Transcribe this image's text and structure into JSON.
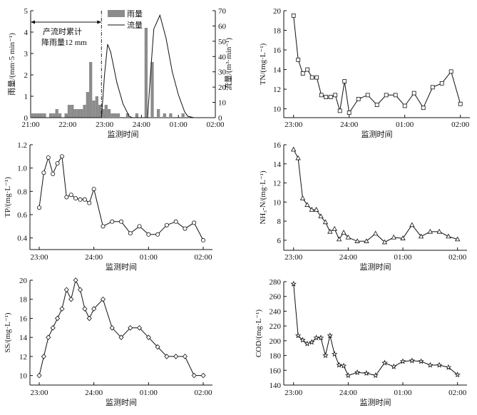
{
  "chart_data": [
    {
      "type": "bar+line",
      "xlabel": "监测时间",
      "xticks": [
        "21:00",
        "22:00",
        "23:00",
        "24:00",
        "01:00",
        "02:00"
      ],
      "xlim": [
        "21:00",
        "02:00"
      ],
      "ylabel": "雨量/(mm·5 min⁻¹)",
      "ylim": [
        0,
        5
      ],
      "yticks": [
        "0",
        "1",
        "2",
        "3",
        "4",
        "5"
      ],
      "y2label": "流量/(m³·min⁻¹)",
      "y2lim": [
        0,
        70
      ],
      "y2ticks": [
        "0",
        "10",
        "20",
        "30",
        "40",
        "50",
        "60",
        "70"
      ],
      "legend": {
        "placement": "top-center",
        "items": [
          "雨量",
          "流量"
        ]
      },
      "annotation": {
        "line1": "产流时累计",
        "line2": "降雨量12 mm",
        "marker_time": "22:55"
      },
      "bar_color": "#8c8c8c",
      "series": [
        {
          "name": "雨量",
          "kind": "bar",
          "axis": "left",
          "bin_minutes": 5,
          "x": [
            "21:00",
            "21:05",
            "21:10",
            "21:15",
            "21:20",
            "21:30",
            "21:35",
            "21:40",
            "21:45",
            "21:55",
            "22:00",
            "22:05",
            "22:10",
            "22:15",
            "22:20",
            "22:25",
            "22:30",
            "22:35",
            "22:40",
            "22:45",
            "22:50",
            "22:55",
            "23:00",
            "23:05",
            "23:10",
            "23:15",
            "23:20",
            "23:35",
            "23:50",
            "00:05",
            "00:15",
            "00:25",
            "00:35",
            "00:45",
            "01:05"
          ],
          "values": [
            0.2,
            0.2,
            0.2,
            0.2,
            0.2,
            0.2,
            0.2,
            0.4,
            0.2,
            0.2,
            0.6,
            0.6,
            0.4,
            0.4,
            0.4,
            0.6,
            1.2,
            2.6,
            0.8,
            1.0,
            0.6,
            0.4,
            0.6,
            0.4,
            0.2,
            0.2,
            0.2,
            0.2,
            0.2,
            4.2,
            2.6,
            0.4,
            0.2,
            0.2,
            0.2
          ]
        },
        {
          "name": "流量",
          "kind": "line",
          "axis": "right",
          "x": [
            "21:00",
            "22:55",
            "23:00",
            "23:05",
            "23:10",
            "23:20",
            "23:30",
            "23:40",
            "23:45",
            "00:10",
            "00:15",
            "00:20",
            "00:30",
            "00:40",
            "00:50",
            "01:00",
            "01:10",
            "01:15",
            "01:25",
            "02:00"
          ],
          "values": [
            0,
            0,
            28,
            48,
            43,
            23,
            9,
            1,
            0,
            0,
            30,
            58,
            67,
            52,
            30,
            15,
            4,
            1,
            0,
            0
          ]
        }
      ]
    },
    {
      "type": "line",
      "marker": "square",
      "xlabel": "监测时间",
      "ylabel": "TN/(mg·L⁻¹)",
      "xticks": [
        "23:00",
        "24:00",
        "01:00",
        "02:00"
      ],
      "xlim": [
        "23:00",
        "02:00"
      ],
      "ylim": [
        9.1,
        20
      ],
      "yticks": [
        "10",
        "12",
        "14",
        "16",
        "18",
        "20"
      ],
      "x": [
        "23:00",
        "23:05",
        "23:10",
        "23:15",
        "23:20",
        "23:25",
        "23:30",
        "23:35",
        "23:40",
        "23:45",
        "23:50",
        "23:55",
        "24:00",
        "00:10",
        "00:20",
        "00:30",
        "00:40",
        "00:50",
        "01:00",
        "01:10",
        "01:20",
        "01:30",
        "01:40",
        "01:50",
        "02:00"
      ],
      "values": [
        19.5,
        15.0,
        13.6,
        14.0,
        13.2,
        13.2,
        11.4,
        11.2,
        11.2,
        11.4,
        9.8,
        12.8,
        9.6,
        11.0,
        11.4,
        10.4,
        11.4,
        11.4,
        10.3,
        11.6,
        10.1,
        12.2,
        12.6,
        13.8,
        10.5
      ]
    },
    {
      "type": "line",
      "marker": "circle",
      "xlabel": "监测时间",
      "ylabel": "TP/(mg·L⁻¹)",
      "xticks": [
        "23:00",
        "24:00",
        "01:00",
        "02:00"
      ],
      "xlim": [
        "23:00",
        "02:00"
      ],
      "ylim": [
        0.3,
        1.2
      ],
      "yticks": [
        "0.4",
        "0.6",
        "0.8",
        "1.0",
        "1.2"
      ],
      "x": [
        "23:00",
        "23:05",
        "23:10",
        "23:15",
        "23:20",
        "23:25",
        "23:30",
        "23:35",
        "23:40",
        "23:45",
        "23:50",
        "23:55",
        "24:00",
        "00:10",
        "00:20",
        "00:30",
        "00:40",
        "00:50",
        "01:00",
        "01:10",
        "01:20",
        "01:30",
        "01:40",
        "01:50",
        "02:00"
      ],
      "values": [
        0.66,
        0.96,
        1.09,
        0.95,
        1.04,
        1.1,
        0.75,
        0.77,
        0.74,
        0.73,
        0.73,
        0.7,
        0.82,
        0.5,
        0.54,
        0.54,
        0.44,
        0.5,
        0.43,
        0.43,
        0.51,
        0.54,
        0.48,
        0.53,
        0.38
      ]
    },
    {
      "type": "line",
      "marker": "triangle",
      "xlabel": "监测时间",
      "ylabel": "NH₃-N/(mg·L⁻¹)",
      "xticks": [
        "23:00",
        "24:00",
        "01:00",
        "02:00"
      ],
      "xlim": [
        "23:00",
        "02:00"
      ],
      "ylim": [
        4.95,
        16
      ],
      "yticks": [
        "6",
        "8",
        "10",
        "12",
        "14",
        "16"
      ],
      "x": [
        "23:00",
        "23:05",
        "23:10",
        "23:15",
        "23:20",
        "23:25",
        "23:30",
        "23:35",
        "23:40",
        "23:45",
        "23:50",
        "23:55",
        "24:00",
        "00:10",
        "00:20",
        "00:30",
        "00:40",
        "00:50",
        "01:00",
        "01:10",
        "01:20",
        "01:30",
        "01:40",
        "01:50",
        "02:00"
      ],
      "values": [
        15.5,
        14.6,
        10.4,
        9.7,
        9.2,
        9.2,
        8.5,
        7.9,
        6.9,
        7.2,
        6.1,
        6.8,
        6.3,
        5.9,
        5.9,
        6.7,
        5.8,
        6.3,
        6.2,
        7.6,
        6.4,
        6.9,
        6.9,
        6.4,
        6.1
      ]
    },
    {
      "type": "line",
      "marker": "diamond",
      "xlabel": "监测时间",
      "ylabel": "SS/(mg·L⁻¹)",
      "xticks": [
        "23:00",
        "24:00",
        "01:00",
        "02:00"
      ],
      "xlim": [
        "23:00",
        "02:00"
      ],
      "ylim": [
        9.0,
        20
      ],
      "yticks": [
        "10",
        "12",
        "14",
        "16",
        "18",
        "20"
      ],
      "x": [
        "23:00",
        "23:05",
        "23:10",
        "23:15",
        "23:20",
        "23:25",
        "23:30",
        "23:35",
        "23:40",
        "23:45",
        "23:50",
        "23:55",
        "24:00",
        "00:10",
        "00:20",
        "00:30",
        "00:40",
        "00:50",
        "01:00",
        "01:10",
        "01:20",
        "01:30",
        "01:40",
        "01:50",
        "02:00"
      ],
      "values": [
        10,
        12,
        14,
        15,
        16,
        17,
        19,
        18,
        20,
        19,
        17,
        16,
        17,
        18,
        15,
        14,
        15,
        15,
        14,
        13,
        12,
        12,
        12,
        10,
        10
      ]
    },
    {
      "type": "line",
      "marker": "star",
      "xlabel": "监测时间",
      "ylabel": "COD/(mg·L⁻¹)",
      "xticks": [
        "23:00",
        "24:00",
        "01:00",
        "02:00"
      ],
      "xlim": [
        "23:00",
        "02:00"
      ],
      "ylim": [
        140,
        280
      ],
      "yticks": [
        "140",
        "160",
        "180",
        "200",
        "220",
        "240",
        "260",
        "280"
      ],
      "x": [
        "23:00",
        "23:05",
        "23:10",
        "23:15",
        "23:20",
        "23:25",
        "23:30",
        "23:35",
        "23:40",
        "23:45",
        "23:50",
        "23:55",
        "24:00",
        "00:10",
        "00:20",
        "00:30",
        "00:40",
        "00:50",
        "01:00",
        "01:10",
        "01:20",
        "01:30",
        "01:40",
        "01:50",
        "02:00"
      ],
      "values": [
        277,
        207,
        201,
        196,
        198,
        204,
        204,
        180,
        207,
        182,
        167,
        166,
        153,
        157,
        156,
        153,
        170,
        165,
        172,
        173,
        172,
        167,
        167,
        164,
        154
      ]
    }
  ]
}
